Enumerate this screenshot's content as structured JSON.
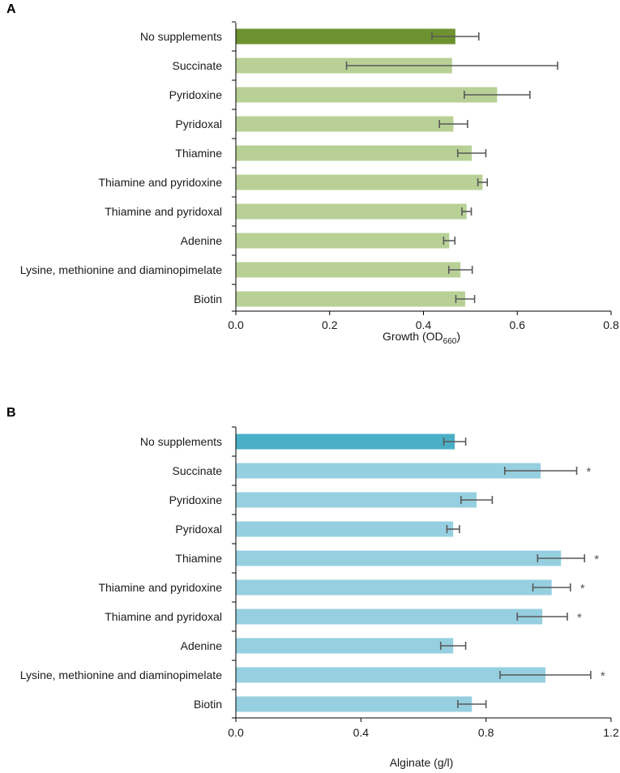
{
  "chart_data": [
    {
      "type": "bar",
      "orientation": "horizontal",
      "panel": "A",
      "categories": [
        "No supplements",
        "Succinate",
        "Pyridoxine",
        "Pyridoxal",
        "Thiamine",
        "Thiamine and pyridoxine",
        "Thiamine and pyridoxal",
        "Adenine",
        "Lysine, methionine and diaminopimelate",
        "Biotin"
      ],
      "values": [
        0.468,
        0.461,
        0.557,
        0.464,
        0.503,
        0.526,
        0.492,
        0.455,
        0.479,
        0.489
      ],
      "errors": [
        0.05,
        0.225,
        0.07,
        0.03,
        0.03,
        0.01,
        0.01,
        0.012,
        0.025,
        0.02
      ],
      "significant": [
        false,
        false,
        false,
        false,
        false,
        false,
        false,
        false,
        false,
        false
      ],
      "highlight_index": 0,
      "colors": {
        "highlight": "#6e9230",
        "bar": "#b8d096",
        "error": "#595959"
      },
      "xlim": [
        0.0,
        0.8
      ],
      "ticks": [
        "0.0",
        "0.2",
        "0.4",
        "0.6",
        "0.8"
      ],
      "xlabel_main": "Growth  (OD",
      "xlabel_sub": "660",
      "xlabel_end": ")"
    },
    {
      "type": "bar",
      "orientation": "horizontal",
      "panel": "B",
      "categories": [
        "No supplements",
        "Succinate",
        "Pyridoxine",
        "Pyridoxal",
        "Thiamine",
        "Thiamine and pyridoxine",
        "Thiamine and pyridoxal",
        "Adenine",
        "Lysine, methionine and diaminopimelate",
        "Biotin"
      ],
      "values": [
        0.7,
        0.975,
        0.77,
        0.695,
        1.04,
        1.01,
        0.98,
        0.695,
        0.99,
        0.755
      ],
      "errors": [
        0.035,
        0.115,
        0.05,
        0.02,
        0.075,
        0.06,
        0.08,
        0.04,
        0.145,
        0.045
      ],
      "significant": [
        false,
        true,
        false,
        false,
        true,
        true,
        true,
        false,
        true,
        false
      ],
      "highlight_index": 0,
      "colors": {
        "highlight": "#4aafc6",
        "bar": "#96cfe0",
        "error": "#595959"
      },
      "xlim": [
        0.0,
        1.2
      ],
      "ticks": [
        "0.0",
        "0.4",
        "0.8",
        "1.2"
      ],
      "xlabel_main": "Alginate  (g/l)",
      "xlabel_sub": "",
      "xlabel_end": ""
    }
  ],
  "labels": {
    "panelA": "A",
    "panelB": "B",
    "sig_marker": "*"
  }
}
